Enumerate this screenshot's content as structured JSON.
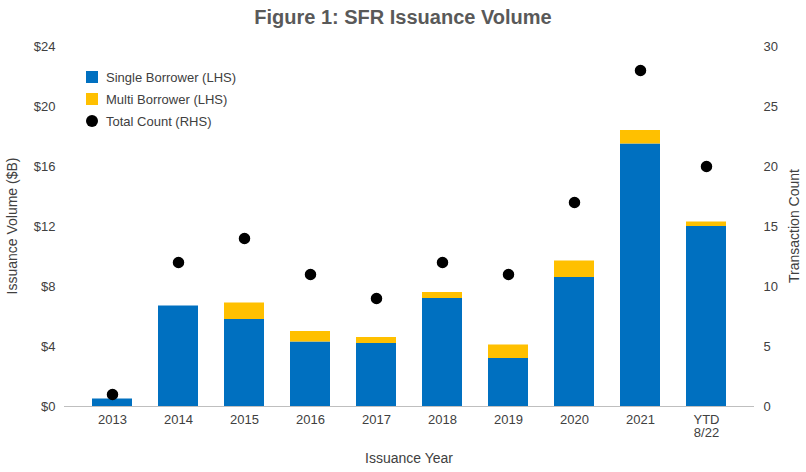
{
  "chart_data": {
    "type": "bar",
    "title": "Figure 1: SFR Issuance Volume",
    "x_label": "Issuance Year",
    "y_label": "Issuance Volume ($B)",
    "y2_label": "Transaction Count",
    "categories": [
      "2013",
      "2014",
      "2015",
      "2016",
      "2017",
      "2018",
      "2019",
      "2020",
      "2021",
      "YTD\n8/22"
    ],
    "stacked": true,
    "grid": false,
    "legend": "top-left",
    "ylim": [
      0,
      24
    ],
    "yticks": [
      {
        "value": 0,
        "label": "$0"
      },
      {
        "value": 4,
        "label": "$4"
      },
      {
        "value": 8,
        "label": "$8"
      },
      {
        "value": 12,
        "label": "$12"
      },
      {
        "value": 16,
        "label": "$16"
      },
      {
        "value": 20,
        "label": "$20"
      },
      {
        "value": 24,
        "label": "$24"
      }
    ],
    "y2lim": [
      0,
      30
    ],
    "y2ticks": [
      0,
      5,
      10,
      15,
      20,
      25,
      30
    ],
    "series": [
      {
        "name": "Single Borrower (LHS)",
        "color": "#0070c0",
        "values": [
          0.5,
          6.7,
          5.8,
          4.3,
          4.2,
          7.2,
          3.2,
          8.6,
          17.5,
          12.0
        ]
      },
      {
        "name": "Multi Borrower (LHS)",
        "color": "#ffc000",
        "values": [
          0,
          0,
          1.1,
          0.7,
          0.4,
          0.4,
          0.9,
          1.1,
          0.9,
          0.3
        ]
      },
      {
        "name": "Total Count (RHS)",
        "type": "scatter",
        "marker": "circle",
        "axis": "y2",
        "color": "#000000",
        "values": [
          1,
          12,
          14,
          11,
          9,
          12,
          11,
          17,
          28,
          20
        ]
      }
    ]
  }
}
